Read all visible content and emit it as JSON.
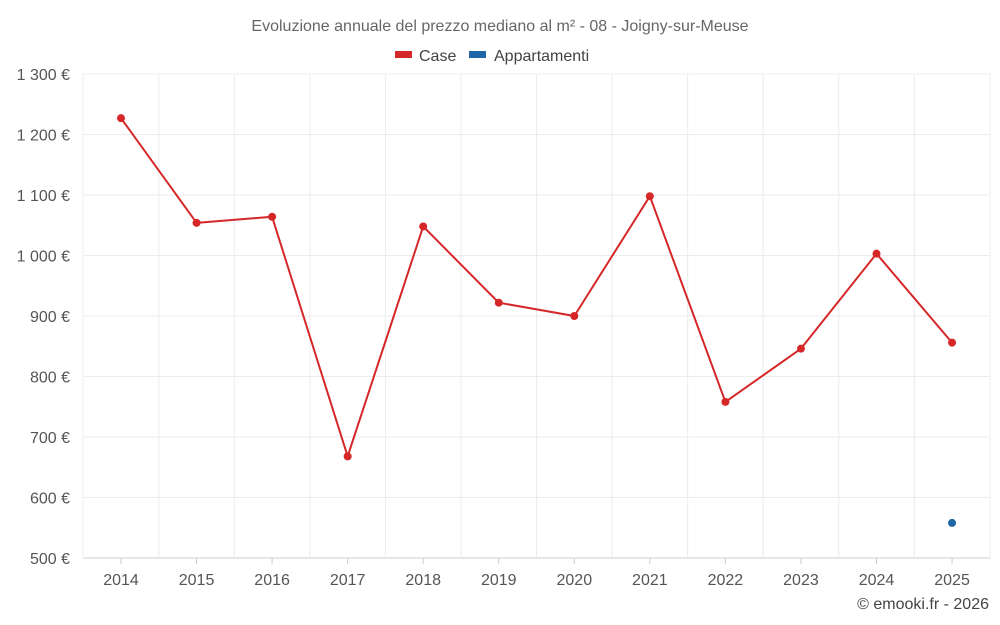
{
  "chart_data": {
    "type": "line",
    "title": "Evoluzione annuale del prezzo mediano al m² - 08 - Joigny-sur-Meuse",
    "categories": [
      "2014",
      "2015",
      "2016",
      "2017",
      "2018",
      "2019",
      "2020",
      "2021",
      "2022",
      "2023",
      "2024",
      "2025"
    ],
    "series": [
      {
        "name": "Case",
        "color": "#d62728",
        "values": [
          1227,
          1054,
          1064,
          668,
          1048,
          922,
          900,
          1098,
          758,
          846,
          1003,
          856
        ]
      },
      {
        "name": "Appartamenti",
        "color": "#1f66a6",
        "values": [
          null,
          null,
          null,
          null,
          null,
          null,
          null,
          null,
          null,
          null,
          null,
          558
        ]
      }
    ],
    "ylim": [
      500,
      1300
    ],
    "yticks": [
      500,
      600,
      700,
      800,
      900,
      1000,
      1100,
      1200,
      1300
    ],
    "ytick_labels": [
      "500 €",
      "600 €",
      "700 €",
      "800 €",
      "900 €",
      "1 000 €",
      "1 100 €",
      "1 200 €",
      "1 300 €"
    ],
    "xlabel": "",
    "ylabel": "",
    "grid": true,
    "legend_position": "top-center"
  },
  "credit": "© emooki.fr - 2026"
}
